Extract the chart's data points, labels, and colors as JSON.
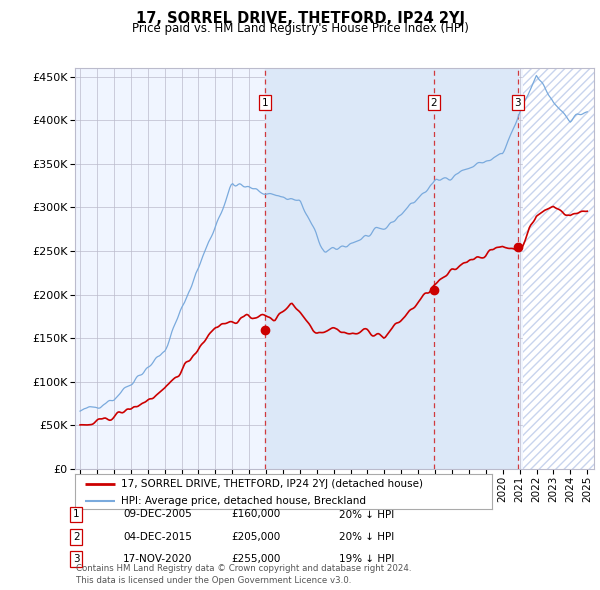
{
  "title": "17, SORREL DRIVE, THETFORD, IP24 2YJ",
  "subtitle": "Price paid vs. HM Land Registry's House Price Index (HPI)",
  "legend_label_red": "17, SORREL DRIVE, THETFORD, IP24 2YJ (detached house)",
  "legend_label_blue": "HPI: Average price, detached house, Breckland",
  "footer": "Contains HM Land Registry data © Crown copyright and database right 2024.\nThis data is licensed under the Open Government Licence v3.0.",
  "transactions": [
    {
      "num": 1,
      "date": "09-DEC-2005",
      "price": "£160,000",
      "note": "20% ↓ HPI",
      "year": 2005.93
    },
    {
      "num": 2,
      "date": "04-DEC-2015",
      "price": "£205,000",
      "note": "20% ↓ HPI",
      "year": 2015.92
    },
    {
      "num": 3,
      "date": "17-NOV-2020",
      "price": "£255,000",
      "note": "19% ↓ HPI",
      "year": 2020.88
    }
  ],
  "transaction_prices": [
    160000,
    205000,
    255000
  ],
  "ylim": [
    0,
    460000
  ],
  "yticks": [
    0,
    50000,
    100000,
    150000,
    200000,
    250000,
    300000,
    350000,
    400000,
    450000
  ],
  "xlim_start": 1994.7,
  "xlim_end": 2025.4,
  "background_color": "#f0f4ff",
  "plot_bg_color": "#f0f5ff",
  "highlight_color": "#dce8f8",
  "hatch_color": "#c8d4ee",
  "grid_color": "#bbbbcc",
  "red_color": "#cc0000",
  "blue_color": "#7aaadd",
  "blue_shade": "#ddeeff"
}
